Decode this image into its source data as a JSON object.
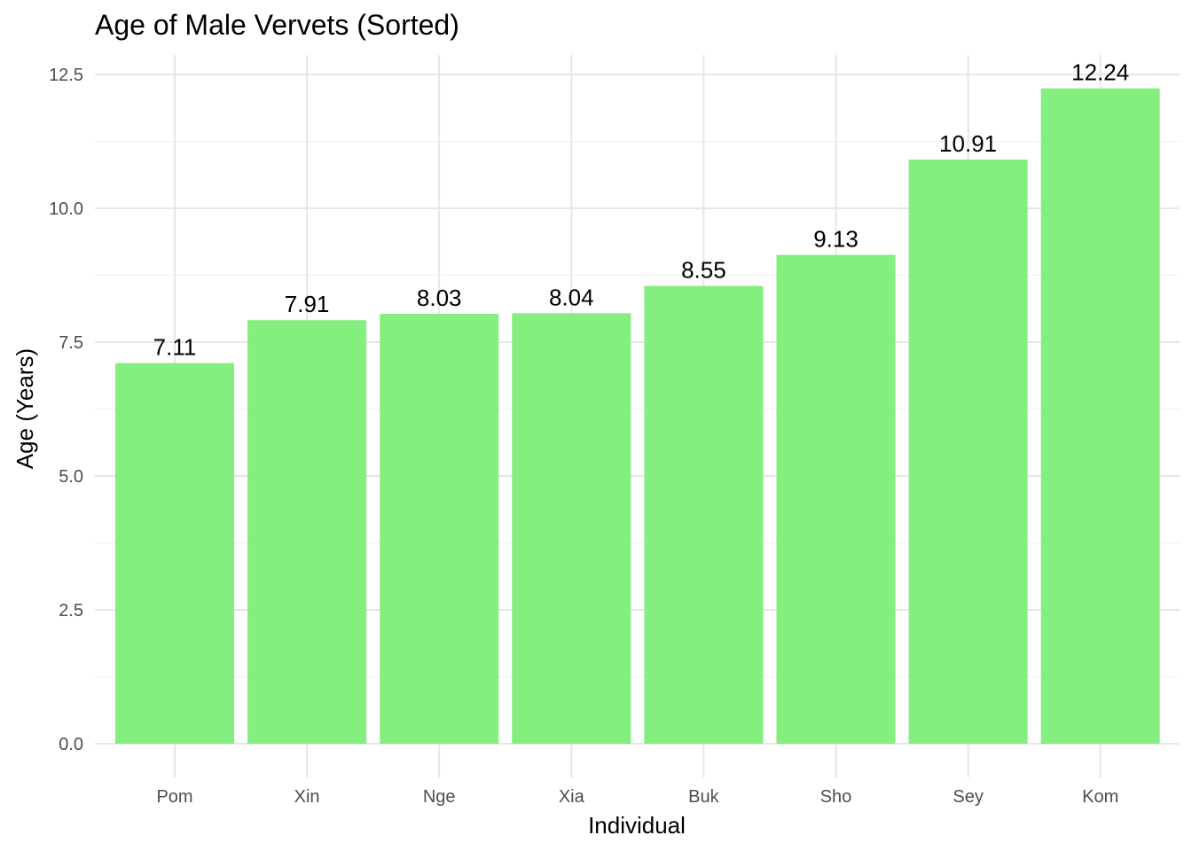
{
  "chart_data": {
    "type": "bar",
    "title": "Age of Male Vervets (Sorted)",
    "xlabel": "Individual",
    "ylabel": "Age (Years)",
    "categories": [
      "Pom",
      "Xin",
      "Nge",
      "Xia",
      "Buk",
      "Sho",
      "Sey",
      "Kom"
    ],
    "values": [
      7.11,
      7.91,
      8.03,
      8.04,
      8.55,
      9.13,
      10.91,
      12.24
    ],
    "data_labels": [
      "7.11",
      "7.91",
      "8.03",
      "8.04",
      "8.55",
      "9.13",
      "10.91",
      "12.24"
    ],
    "ylim": [
      0,
      12.5
    ],
    "y_ticks": [
      0,
      2.5,
      5,
      7.5,
      10,
      12.5
    ],
    "y_tick_labels": [
      "0.0",
      "2.5",
      "5.0",
      "7.5",
      "10.0",
      "12.5"
    ],
    "bar_color": "#84ee7f",
    "grid": true,
    "legend": "none"
  }
}
